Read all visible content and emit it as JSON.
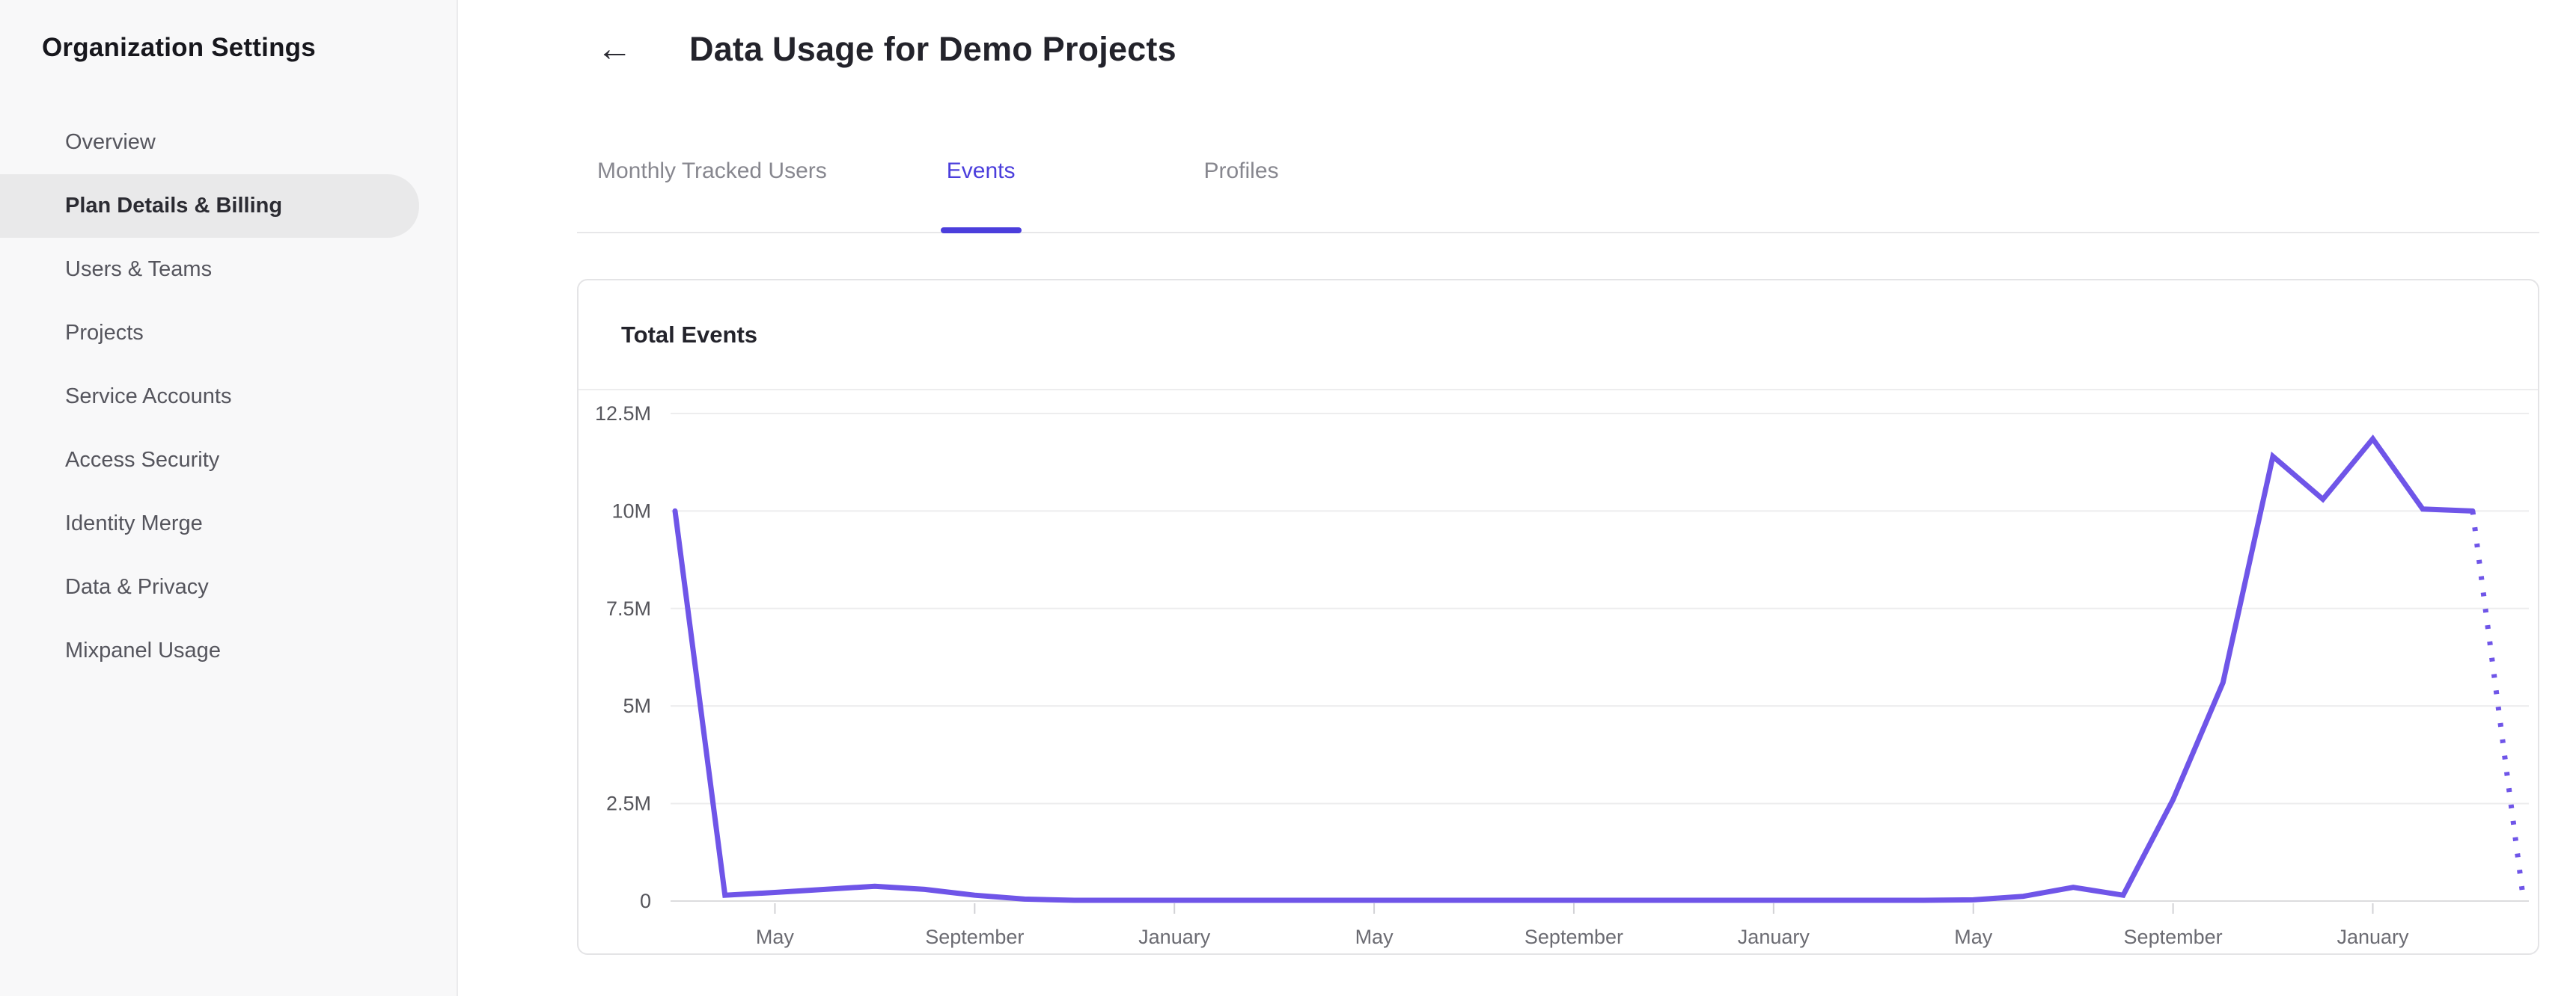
{
  "colors": {
    "accent": "#4b3edc",
    "chart_line": "#6f55e8"
  },
  "sidebar": {
    "title": "Organization Settings",
    "items": [
      {
        "label": "Overview",
        "active": false
      },
      {
        "label": "Plan Details & Billing",
        "active": true
      },
      {
        "label": "Users & Teams",
        "active": false
      },
      {
        "label": "Projects",
        "active": false
      },
      {
        "label": "Service Accounts",
        "active": false
      },
      {
        "label": "Access Security",
        "active": false
      },
      {
        "label": "Identity Merge",
        "active": false
      },
      {
        "label": "Data & Privacy",
        "active": false
      },
      {
        "label": "Mixpanel Usage",
        "active": false
      }
    ]
  },
  "header": {
    "back_icon_glyph": "←",
    "title": "Data Usage for Demo Projects"
  },
  "tabs": [
    {
      "label": "Monthly Tracked Users",
      "active": false
    },
    {
      "label": "Events",
      "active": true
    },
    {
      "label": "Profiles",
      "active": false
    }
  ],
  "card": {
    "title": "Total Events"
  },
  "chart_data": {
    "type": "line",
    "title": "Total Events",
    "series_name": "Total Events",
    "unit": "events (millions)",
    "grid": "horizontal-only",
    "legend_position": "none",
    "ylim": [
      0,
      12.5
    ],
    "y_axis": {
      "tick_labels": [
        "12.5M",
        "10M",
        "7.5M",
        "5M",
        "2.5M",
        "0"
      ],
      "tick_values": [
        12.5,
        10,
        7.5,
        5,
        2.5,
        0
      ]
    },
    "x_axis": {
      "tick_labels": [
        "May",
        "September",
        "January",
        "May",
        "September",
        "January",
        "May",
        "September",
        "January"
      ],
      "tick_indices": [
        2,
        6,
        10,
        14,
        18,
        22,
        26,
        30,
        34
      ],
      "months_per_tick": 4
    },
    "values": [
      10,
      0.15,
      0.22,
      0.3,
      0.38,
      0.3,
      0.15,
      0.05,
      0.02,
      0.02,
      0.02,
      0.02,
      0.02,
      0.02,
      0.02,
      0.02,
      0.02,
      0.02,
      0.02,
      0.02,
      0.02,
      0.02,
      0.02,
      0.02,
      0.02,
      0.02,
      0.03,
      0.12,
      0.35,
      0.15,
      2.6,
      5.6,
      11.4,
      10.3,
      11.85,
      10.05,
      10,
      0.2
    ],
    "solid_until_index": 36,
    "last_segment_dotted_projection": true
  }
}
